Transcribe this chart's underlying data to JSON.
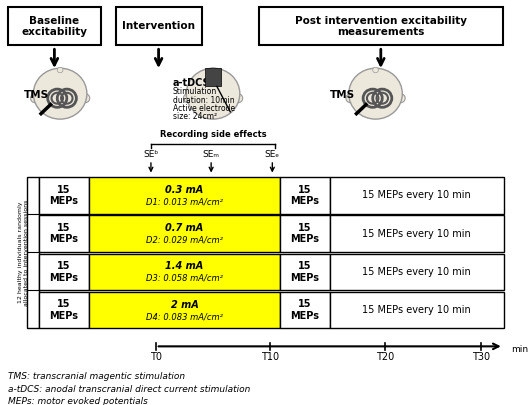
{
  "cd_rows": [
    {
      "dose": "0.3 mA",
      "density": "D1: 0.013 mA/cm²"
    },
    {
      "dose": "0.7 mA",
      "density": "D2: 0.029 mA/cm²"
    },
    {
      "dose": "1.4 mA",
      "density": "D3: 0.058 mA/cm²"
    },
    {
      "dose": "2 mA",
      "density": "D4: 0.083 mA/cm²"
    }
  ],
  "se_labels": [
    "SEᵇ",
    "SEₘ",
    "SEₑ"
  ],
  "left_label_lines": [
    "12 healthy individuals randomly",
    "allocated to intervention sessions"
  ],
  "timeline_labels": [
    "T0",
    "T10",
    "T20",
    "T30"
  ],
  "footnotes": [
    "TMS: transcranial magentic stimulation",
    "a-tDCS: anodal transcranial direct current stimulation",
    "MEPs: motor evoked potentials"
  ],
  "atdcs_lines": [
    "a-tDCS",
    "Stimulation",
    "duration: 10min",
    "Active electrode",
    "size: 24cm²"
  ],
  "bg_color": "#ffffff",
  "yellow_color": "#ffff00"
}
